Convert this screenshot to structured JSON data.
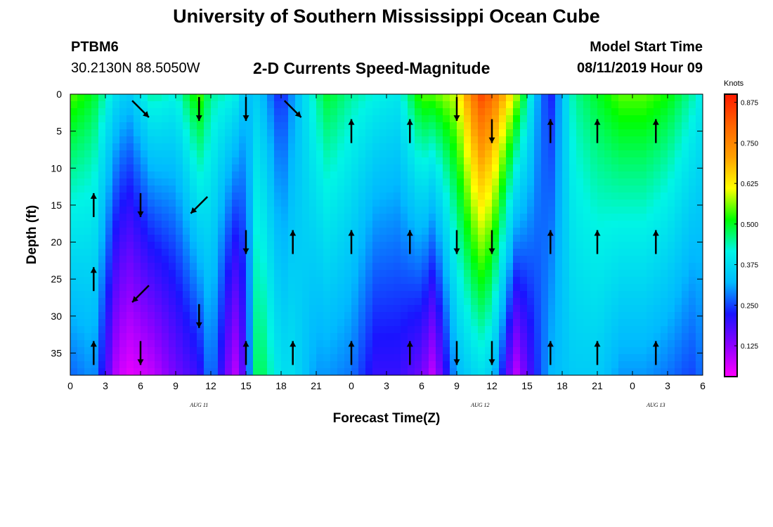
{
  "header": {
    "title_top": "University of Southern Mississippi Ocean Cube",
    "title_bottom": "University of Southern Mississippi Ocean Cube",
    "station_name": "PTBM6",
    "station_coords": "30.2130N 88.5050W",
    "subtitle": "2-D Currents Speed-Magnitude",
    "model_start_label": "Model Start Time",
    "model_start_value": "08/11/2019 Hour 09"
  },
  "colors": {
    "speed_scale": [
      "#ff00ff",
      "#8c00ff",
      "#1a14ff",
      "#00b9ff",
      "#00f5e5",
      "#00ff00",
      "#ffff00",
      "#ffa000",
      "#ff6400",
      "#ff1a00"
    ]
  },
  "chart_data": {
    "type": "heatmap",
    "title": "2-D Currents Speed-Magnitude",
    "xlabel": "Forecast Time(Z)",
    "ylabel": "Depth (ft)",
    "x_ticks": [
      "0",
      "3",
      "6",
      "9",
      "12",
      "15",
      "18",
      "21",
      "0",
      "3",
      "6",
      "9",
      "12",
      "15",
      "18",
      "21",
      "0",
      "3",
      "6"
    ],
    "x_date_labels": [
      {
        "label": "AUG 11",
        "hour_index": 11
      },
      {
        "label": "AUG 12",
        "hour_index": 35
      },
      {
        "label": "AUG 13",
        "hour_index": 50
      }
    ],
    "xlim": [
      0,
      54
    ],
    "y_ticks": [
      "0",
      "5",
      "10",
      "15",
      "20",
      "25",
      "30",
      "35"
    ],
    "y_tick_values": [
      0,
      5,
      10,
      15,
      20,
      25,
      30,
      35
    ],
    "ylim": [
      0,
      38
    ],
    "y_inverted": true,
    "colorbar": {
      "unit": "Knots",
      "tick_labels": [
        "0.875",
        "0.750",
        "0.625",
        "0.500",
        "0.375",
        "0.250",
        "0.125"
      ],
      "tick_values": [
        0.875,
        0.75,
        0.625,
        0.5,
        0.375,
        0.25,
        0.125
      ],
      "range": [
        0.03,
        0.9
      ]
    },
    "profiles": [
      {
        "hour": 0,
        "surface": 0.55,
        "bottom": 0.27
      },
      {
        "hour": 2,
        "surface": 0.5,
        "bottom": 0.3
      },
      {
        "hour": 4,
        "surface": 0.38,
        "bottom": 0.08
      },
      {
        "hour": 5,
        "surface": 0.35,
        "bottom": 0.05
      },
      {
        "hour": 7,
        "surface": 0.45,
        "bottom": 0.08
      },
      {
        "hour": 9,
        "surface": 0.42,
        "bottom": 0.15
      },
      {
        "hour": 11,
        "surface": 0.55,
        "bottom": 0.2
      },
      {
        "hour": 12,
        "surface": 0.45,
        "bottom": 0.3
      },
      {
        "hour": 14,
        "surface": 0.42,
        "bottom": 0.08
      },
      {
        "hour": 15,
        "surface": 0.33,
        "bottom": 0.2
      },
      {
        "hour": 16,
        "surface": 0.35,
        "bottom": 0.5
      },
      {
        "hour": 18,
        "surface": 0.22,
        "bottom": 0.38
      },
      {
        "hour": 19,
        "surface": 0.3,
        "bottom": 0.38
      },
      {
        "hour": 21,
        "surface": 0.45,
        "bottom": 0.3
      },
      {
        "hour": 22,
        "surface": 0.5,
        "bottom": 0.3
      },
      {
        "hour": 24,
        "surface": 0.45,
        "bottom": 0.28
      },
      {
        "hour": 26,
        "surface": 0.42,
        "bottom": 0.2
      },
      {
        "hour": 28,
        "surface": 0.4,
        "bottom": 0.2
      },
      {
        "hour": 30,
        "surface": 0.55,
        "bottom": 0.15
      },
      {
        "hour": 31,
        "surface": 0.55,
        "bottom": 0.08
      },
      {
        "hour": 33,
        "surface": 0.6,
        "bottom": 0.32
      },
      {
        "hour": 35,
        "surface": 0.85,
        "bottom": 0.38
      },
      {
        "hour": 36,
        "surface": 0.8,
        "bottom": 0.35
      },
      {
        "hour": 38,
        "surface": 0.6,
        "bottom": 0.08
      },
      {
        "hour": 40,
        "surface": 0.3,
        "bottom": 0.25
      },
      {
        "hour": 41,
        "surface": 0.22,
        "bottom": 0.32
      },
      {
        "hour": 43,
        "surface": 0.45,
        "bottom": 0.35
      },
      {
        "hour": 45,
        "surface": 0.5,
        "bottom": 0.35
      },
      {
        "hour": 47,
        "surface": 0.55,
        "bottom": 0.3
      },
      {
        "hour": 49,
        "surface": 0.55,
        "bottom": 0.3
      },
      {
        "hour": 51,
        "surface": 0.52,
        "bottom": 0.28
      },
      {
        "hour": 53,
        "surface": 0.45,
        "bottom": 0.25
      },
      {
        "hour": 54,
        "surface": 0.4,
        "bottom": 0.28
      }
    ],
    "vectors": [
      {
        "hour": 2,
        "depth": 15,
        "dir": "north"
      },
      {
        "hour": 2,
        "depth": 25,
        "dir": "north"
      },
      {
        "hour": 2,
        "depth": 35,
        "dir": "north"
      },
      {
        "hour": 6,
        "depth": 2,
        "dir": "southeast"
      },
      {
        "hour": 6,
        "depth": 15,
        "dir": "south"
      },
      {
        "hour": 6,
        "depth": 27,
        "dir": "southwest"
      },
      {
        "hour": 6,
        "depth": 35,
        "dir": "south"
      },
      {
        "hour": 11,
        "depth": 2,
        "dir": "south"
      },
      {
        "hour": 11,
        "depth": 15,
        "dir": "southwest"
      },
      {
        "hour": 11,
        "depth": 30,
        "dir": "south"
      },
      {
        "hour": 15,
        "depth": 2,
        "dir": "south"
      },
      {
        "hour": 15,
        "depth": 20,
        "dir": "south"
      },
      {
        "hour": 15,
        "depth": 35,
        "dir": "north"
      },
      {
        "hour": 19,
        "depth": 2,
        "dir": "southeast"
      },
      {
        "hour": 19,
        "depth": 20,
        "dir": "north"
      },
      {
        "hour": 19,
        "depth": 35,
        "dir": "north"
      },
      {
        "hour": 24,
        "depth": 5,
        "dir": "north"
      },
      {
        "hour": 24,
        "depth": 20,
        "dir": "north"
      },
      {
        "hour": 24,
        "depth": 35,
        "dir": "north"
      },
      {
        "hour": 29,
        "depth": 5,
        "dir": "north"
      },
      {
        "hour": 29,
        "depth": 20,
        "dir": "north"
      },
      {
        "hour": 29,
        "depth": 35,
        "dir": "north"
      },
      {
        "hour": 33,
        "depth": 2,
        "dir": "south"
      },
      {
        "hour": 33,
        "depth": 20,
        "dir": "south"
      },
      {
        "hour": 33,
        "depth": 35,
        "dir": "south"
      },
      {
        "hour": 36,
        "depth": 5,
        "dir": "south"
      },
      {
        "hour": 36,
        "depth": 20,
        "dir": "south"
      },
      {
        "hour": 36,
        "depth": 35,
        "dir": "south"
      },
      {
        "hour": 41,
        "depth": 5,
        "dir": "north"
      },
      {
        "hour": 41,
        "depth": 20,
        "dir": "north"
      },
      {
        "hour": 41,
        "depth": 35,
        "dir": "north"
      },
      {
        "hour": 45,
        "depth": 5,
        "dir": "north"
      },
      {
        "hour": 45,
        "depth": 20,
        "dir": "north"
      },
      {
        "hour": 45,
        "depth": 35,
        "dir": "north"
      },
      {
        "hour": 50,
        "depth": 5,
        "dir": "north"
      },
      {
        "hour": 50,
        "depth": 20,
        "dir": "north"
      },
      {
        "hour": 50,
        "depth": 35,
        "dir": "north"
      }
    ]
  }
}
